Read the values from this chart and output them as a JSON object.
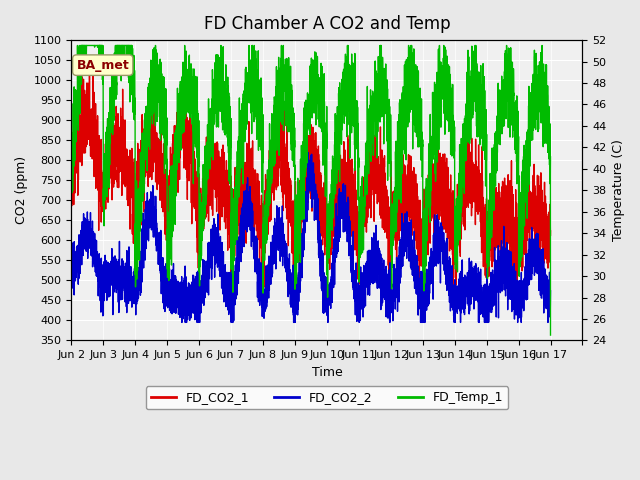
{
  "title": "FD Chamber A CO2 and Temp",
  "xlabel": "Time",
  "ylabel_left": "CO2 (ppm)",
  "ylabel_right": "Temperature (C)",
  "ylim_left": [
    350,
    1100
  ],
  "ylim_right": [
    24,
    52
  ],
  "yticks_left": [
    350,
    400,
    450,
    500,
    550,
    600,
    650,
    700,
    750,
    800,
    850,
    900,
    950,
    1000,
    1050,
    1100
  ],
  "yticks_right": [
    24,
    26,
    28,
    30,
    32,
    34,
    36,
    38,
    40,
    42,
    44,
    46,
    48,
    50,
    52
  ],
  "x_labels": [
    "Jun 2",
    "Jun 3",
    "Jun 4",
    "Jun 5",
    "Jun 6",
    "Jun 7",
    "Jun 8",
    "Jun 9",
    "Jun 10",
    "Jun 11",
    "Jun 12",
    "Jun 13",
    "Jun 14",
    "Jun 15",
    "Jun 16",
    "Jun 17",
    ""
  ],
  "color_co2_1": "#dd0000",
  "color_co2_2": "#0000cc",
  "color_temp": "#00bb00",
  "legend_labels": [
    "FD_CO2_1",
    "FD_CO2_2",
    "FD_Temp_1"
  ],
  "annotation_text": "BA_met",
  "bg_color": "#e8e8e8",
  "plot_bg_color": "#f0f0f0",
  "line_width": 1.0,
  "title_fontsize": 12,
  "axis_fontsize": 9,
  "tick_fontsize": 8
}
